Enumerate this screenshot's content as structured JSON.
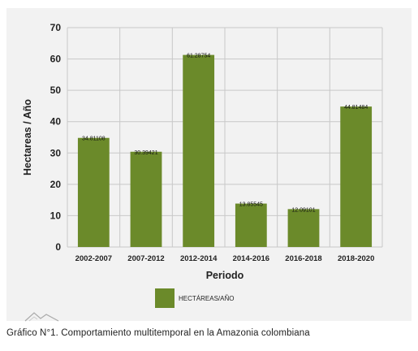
{
  "chart_data": {
    "type": "bar",
    "categories": [
      "2002-2007",
      "2007-2012",
      "2012-2014",
      "2014-2016",
      "2016-2018",
      "2018-2020"
    ],
    "values": [
      34.81108,
      30.39421,
      61.28754,
      13.85545,
      12.09101,
      44.81484
    ],
    "value_labels": [
      "34.81108",
      "30.39421",
      "61.28754",
      "13.85545",
      "12.09101",
      "44.81484"
    ],
    "xlabel": "Periodo",
    "ylabel": "Hectareas / Año",
    "ylim": [
      0,
      70
    ],
    "yticks": [
      0,
      10,
      20,
      30,
      40,
      50,
      60,
      70
    ],
    "grid": true,
    "legend_position": "bottom-center",
    "series": [
      {
        "name": "HECTÁREAS/AÑO",
        "color": "#6b8a2a"
      }
    ]
  },
  "caption": "Gráfico N°1. Comportamiento multitemporal en la Amazonia colombiana",
  "logo_icon": "mountain-outline-icon"
}
